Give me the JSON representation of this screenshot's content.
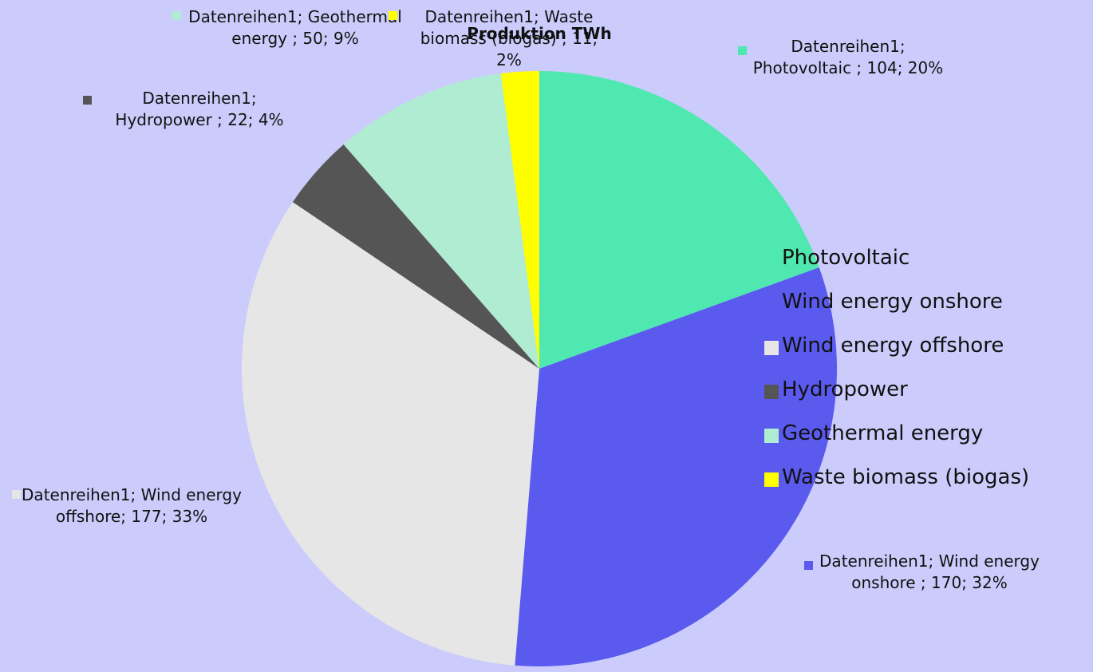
{
  "chart_data": {
    "type": "pie",
    "title": "Produktion TWh",
    "categories": [
      "Photovoltaic",
      "Wind energy onshore",
      "Wind energy offshore",
      "Hydropower",
      "Geothermal energy",
      "Waste biomass (biogas)"
    ],
    "values": [
      104,
      170,
      177,
      22,
      50,
      11
    ],
    "value_labels": [
      "Datenreihen1; Photovoltaic ; 104; 20%",
      "Datenreihen1; Wind energy onshore ; 170; 32%",
      "Datenreihen1; Wind energy offshore; 177; 33%",
      "Datenreihen1; Hydropower ; 22; 4%",
      "Datenreihen1; Geothermal energy ; 50; 9%",
      "Datenreihen1; Waste biomass (biogas) ; 11; 2%"
    ],
    "colors": [
      "#4fe8b0",
      "#5a5aee",
      "#e6e6e6",
      "#555555",
      "#b0ecd2",
      "#ffff00"
    ],
    "legend": "right"
  }
}
